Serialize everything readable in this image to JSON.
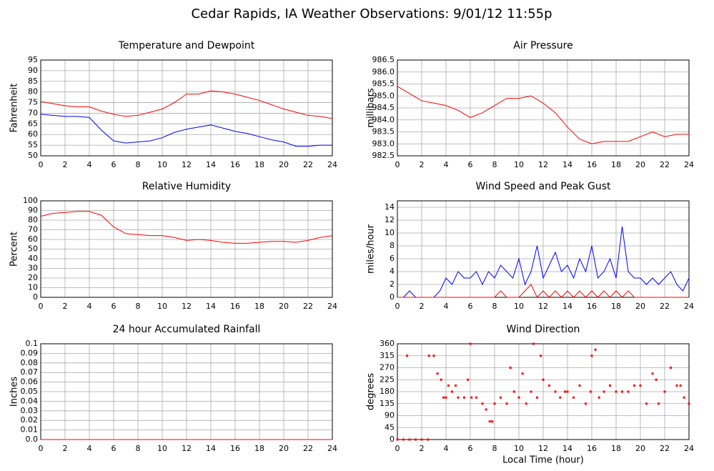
{
  "title": "Cedar Rapids, IA Weather Observations: 9/01/12 11:55p",
  "chart_data": [
    {
      "type": "line",
      "title": "Temperature and Dewpoint",
      "ylabel": "Fahrenheit",
      "grid": true,
      "x": [
        0,
        1,
        2,
        3,
        4,
        5,
        6,
        7,
        8,
        9,
        10,
        11,
        12,
        13,
        14,
        15,
        16,
        17,
        18,
        19,
        20,
        21,
        22,
        23,
        24
      ],
      "xlim": [
        0,
        24
      ],
      "xticks": [
        0,
        2,
        4,
        6,
        8,
        10,
        12,
        14,
        16,
        18,
        20,
        22,
        24
      ],
      "ylim": [
        50,
        95
      ],
      "yticks": [
        50,
        55,
        60,
        65,
        70,
        75,
        80,
        85,
        90,
        95
      ],
      "series": [
        {
          "color": "#ff0000",
          "values": [
            75.5,
            74.5,
            73.5,
            73,
            73,
            71,
            69.5,
            68.5,
            69,
            70.5,
            72,
            75,
            79,
            79,
            80.5,
            80,
            79,
            77.5,
            76,
            74,
            72,
            70.5,
            69,
            68.5,
            67.5
          ]
        },
        {
          "color": "#0000ff",
          "values": [
            69.5,
            69,
            68.5,
            68.5,
            68,
            62,
            57,
            56,
            56.5,
            57,
            58.5,
            61,
            62.5,
            63.5,
            64.5,
            63,
            61.5,
            60.5,
            59,
            57.5,
            56.5,
            54.5,
            54.5,
            55,
            55
          ]
        }
      ]
    },
    {
      "type": "line",
      "title": "Air Pressure",
      "ylabel": "millibars",
      "grid": true,
      "x": [
        0,
        1,
        2,
        3,
        4,
        5,
        6,
        7,
        8,
        9,
        10,
        11,
        12,
        13,
        14,
        15,
        16,
        17,
        18,
        19,
        20,
        21,
        22,
        23,
        24
      ],
      "xlim": [
        0,
        24
      ],
      "xticks": [
        0,
        2,
        4,
        6,
        8,
        10,
        12,
        14,
        16,
        18,
        20,
        22,
        24
      ],
      "ylim": [
        982.5,
        986.5
      ],
      "yticks": [
        982.5,
        {
          "value": 983,
          "label": "983.0"
        },
        983.5,
        {
          "value": 984,
          "label": "984.0"
        },
        984.5,
        {
          "value": 985,
          "label": "985.0"
        },
        985.5,
        {
          "value": 986,
          "label": "986.0"
        },
        986.5
      ],
      "series": [
        {
          "color": "#ff0000",
          "values": [
            985.4,
            985.1,
            984.8,
            984.7,
            984.6,
            984.4,
            984.1,
            984.3,
            984.6,
            984.9,
            984.9,
            985.0,
            984.7,
            984.3,
            983.7,
            983.2,
            983.0,
            983.1,
            983.1,
            983.1,
            983.3,
            983.5,
            983.3,
            983.4,
            983.4
          ]
        }
      ]
    },
    {
      "type": "line",
      "title": "Relative Humidity",
      "ylabel": "Percent",
      "grid": true,
      "x": [
        0,
        1,
        2,
        3,
        4,
        5,
        6,
        7,
        8,
        9,
        10,
        11,
        12,
        13,
        14,
        15,
        16,
        17,
        18,
        19,
        20,
        21,
        22,
        23,
        24
      ],
      "xlim": [
        0,
        24
      ],
      "xticks": [
        0,
        2,
        4,
        6,
        8,
        10,
        12,
        14,
        16,
        18,
        20,
        22,
        24
      ],
      "ylim": [
        0,
        100
      ],
      "yticks": [
        0,
        10,
        20,
        30,
        40,
        50,
        60,
        70,
        80,
        90,
        100
      ],
      "series": [
        {
          "color": "#ff0000",
          "values": [
            84,
            87,
            88,
            89,
            89,
            85,
            73,
            66,
            65,
            64,
            64,
            62,
            59,
            60,
            59,
            57,
            56,
            56,
            57,
            58,
            58,
            57,
            59,
            62,
            64
          ]
        }
      ]
    },
    {
      "type": "line",
      "title": "Wind Speed and Peak Gust",
      "ylabel": "miles/hour",
      "grid": true,
      "x": [
        0,
        0.5,
        1,
        1.5,
        2,
        2.5,
        3,
        3.5,
        4,
        4.5,
        5,
        5.5,
        6,
        6.5,
        7,
        7.5,
        8,
        8.5,
        9,
        9.5,
        10,
        10.5,
        11,
        11.5,
        12,
        12.5,
        13,
        13.5,
        14,
        14.5,
        15,
        15.5,
        16,
        16.5,
        17,
        17.5,
        18,
        18.5,
        19,
        19.5,
        20,
        20.5,
        21,
        21.5,
        22,
        22.5,
        23,
        23.5,
        24
      ],
      "xlim": [
        0,
        24
      ],
      "xticks": [
        0,
        2,
        4,
        6,
        8,
        10,
        12,
        14,
        16,
        18,
        20,
        22,
        24
      ],
      "ylim": [
        0,
        15
      ],
      "yticks": [
        0,
        2,
        4,
        6,
        8,
        10,
        12,
        14
      ],
      "series": [
        {
          "color": "#0000ff",
          "values": [
            0,
            0,
            1,
            0,
            0,
            0,
            0,
            1,
            3,
            2,
            4,
            3,
            3,
            4,
            2,
            4,
            3,
            5,
            4,
            3,
            6,
            2,
            4,
            8,
            3,
            5,
            7,
            4,
            5,
            3,
            6,
            4,
            8,
            3,
            4,
            6,
            3,
            11,
            4,
            3,
            3,
            2,
            3,
            2,
            3,
            4,
            2,
            1,
            3
          ]
        },
        {
          "color": "#ff0000",
          "values": [
            0,
            0,
            0,
            0,
            0,
            0,
            0,
            0,
            0,
            0,
            0,
            0,
            0,
            0,
            0,
            0,
            0,
            1,
            0,
            0,
            0,
            1,
            2,
            0,
            1,
            0,
            1,
            0,
            1,
            0,
            1,
            0,
            1,
            0,
            1,
            0,
            1,
            0,
            1,
            0,
            0,
            0,
            0,
            0,
            0,
            0,
            0,
            0,
            0
          ]
        }
      ]
    },
    {
      "type": "line",
      "title": "24 hour Accumulated Rainfall",
      "ylabel": "Inches",
      "grid": true,
      "x": [
        0,
        24
      ],
      "xlim": [
        0,
        24
      ],
      "xticks": [
        0,
        2,
        4,
        6,
        8,
        10,
        12,
        14,
        16,
        18,
        20,
        22,
        24
      ],
      "ylim": [
        0,
        0.1
      ],
      "yticks": [
        {
          "value": 0,
          "label": "0.0"
        },
        0.01,
        0.02,
        0.03,
        0.04,
        0.05,
        0.06,
        0.07,
        0.08,
        0.09,
        0.1
      ],
      "series": [
        {
          "color": "#ff0000",
          "values": [
            0,
            0
          ]
        }
      ]
    },
    {
      "type": "scatter",
      "title": "Wind Direction",
      "ylabel": "degrees",
      "xlabel": "Local Time (hour)",
      "grid": true,
      "x": [
        0,
        0.5,
        1,
        1.5,
        2,
        2.5,
        0.8,
        2.6,
        3,
        3.3,
        3.6,
        3.8,
        4,
        4.2,
        4.5,
        4.8,
        5,
        5.5,
        5.8,
        6,
        6.1,
        6.5,
        7,
        7.3,
        7.6,
        7.8,
        8,
        8.5,
        9,
        9.3,
        9.6,
        10,
        10.3,
        10.6,
        11,
        11.2,
        11.5,
        11.8,
        12,
        12.5,
        13,
        13.4,
        13.8,
        14,
        14.5,
        15,
        15.5,
        15.9,
        16,
        16.3,
        16.6,
        17,
        17.5,
        18,
        18.5,
        19,
        19.5,
        20,
        20.5,
        21,
        21.3,
        21.5,
        22,
        22.5,
        23,
        23.3,
        23.6,
        24
      ],
      "xlim": [
        0,
        24
      ],
      "xticks": [
        0,
        2,
        4,
        6,
        8,
        10,
        12,
        14,
        16,
        18,
        20,
        22,
        24
      ],
      "ylim": [
        0,
        360
      ],
      "yticks": [
        0,
        45,
        90,
        135,
        180,
        225,
        270,
        315,
        360
      ],
      "color": "#ff0000",
      "values": [
        0,
        0,
        0,
        0,
        0,
        0,
        315,
        315,
        315,
        248,
        225,
        158,
        158,
        203,
        180,
        203,
        158,
        158,
        225,
        360,
        158,
        158,
        135,
        113,
        68,
        68,
        135,
        158,
        135,
        270,
        180,
        158,
        248,
        135,
        180,
        360,
        158,
        315,
        225,
        203,
        180,
        158,
        180,
        180,
        158,
        203,
        135,
        180,
        315,
        338,
        158,
        180,
        203,
        180,
        180,
        180,
        203,
        203,
        135,
        248,
        225,
        135,
        180,
        270,
        203,
        203,
        158,
        135
      ]
    }
  ]
}
